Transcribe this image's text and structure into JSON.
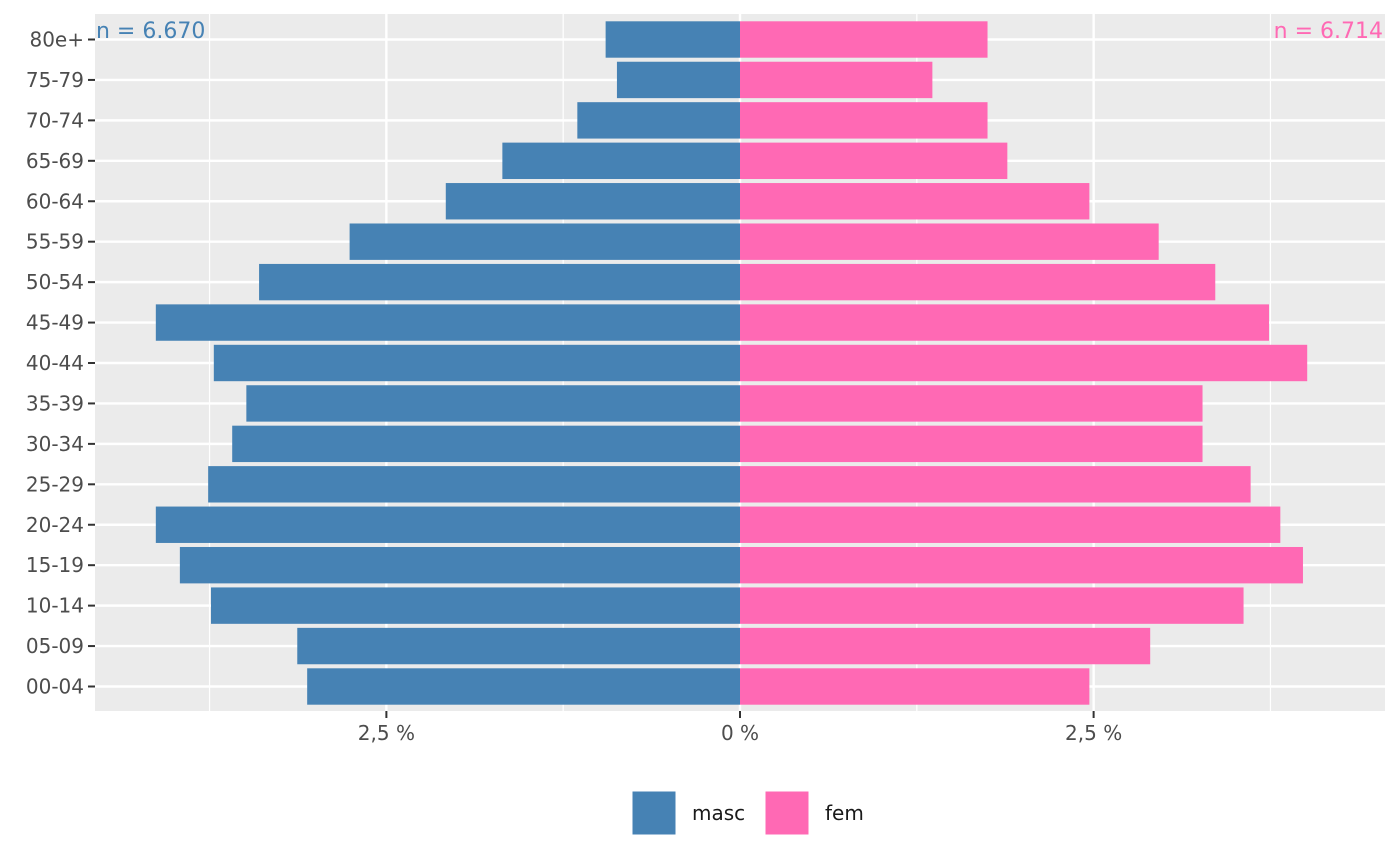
{
  "chart_data": {
    "type": "bar",
    "orientation": "horizontal",
    "layout": "population-pyramid",
    "categories": [
      "00-04",
      "05-09",
      "10-14",
      "15-19",
      "20-24",
      "25-29",
      "30-34",
      "35-39",
      "40-44",
      "45-49",
      "50-54",
      "55-59",
      "60-64",
      "65-69",
      "70-74",
      "75-79",
      "80e+"
    ],
    "series": [
      {
        "name": "masc",
        "color": "#4682b4",
        "side": "left",
        "values": [
          3.06,
          3.13,
          3.74,
          3.96,
          4.13,
          3.76,
          3.59,
          3.49,
          3.72,
          4.13,
          3.4,
          2.76,
          2.08,
          1.68,
          1.15,
          0.87,
          0.95
        ]
      },
      {
        "name": "fem",
        "color": "#ff69b4",
        "side": "right",
        "values": [
          2.47,
          2.9,
          3.56,
          3.98,
          3.82,
          3.61,
          3.27,
          3.27,
          4.01,
          3.74,
          3.36,
          2.96,
          2.47,
          1.89,
          1.75,
          1.36,
          1.75
        ]
      }
    ],
    "annotations": {
      "left_n": "n = 6.670",
      "right_n": "n = 6.714"
    },
    "xaxis": {
      "ticks": [
        {
          "value": -2.5,
          "label": "2,5 %"
        },
        {
          "value": 0,
          "label": "0 %"
        },
        {
          "value": 2.5,
          "label": "2,5 %"
        }
      ],
      "minor_ticks": [
        -3.75,
        -1.25,
        1.25,
        3.75
      ],
      "range": [
        -4.56,
        4.56
      ]
    },
    "title": "",
    "xlabel": "",
    "ylabel": "",
    "grid": true,
    "legend": {
      "position": "bottom",
      "entries": [
        "masc",
        "fem"
      ]
    },
    "panel_color": "#ebebeb",
    "grid_color": "#ffffff"
  }
}
